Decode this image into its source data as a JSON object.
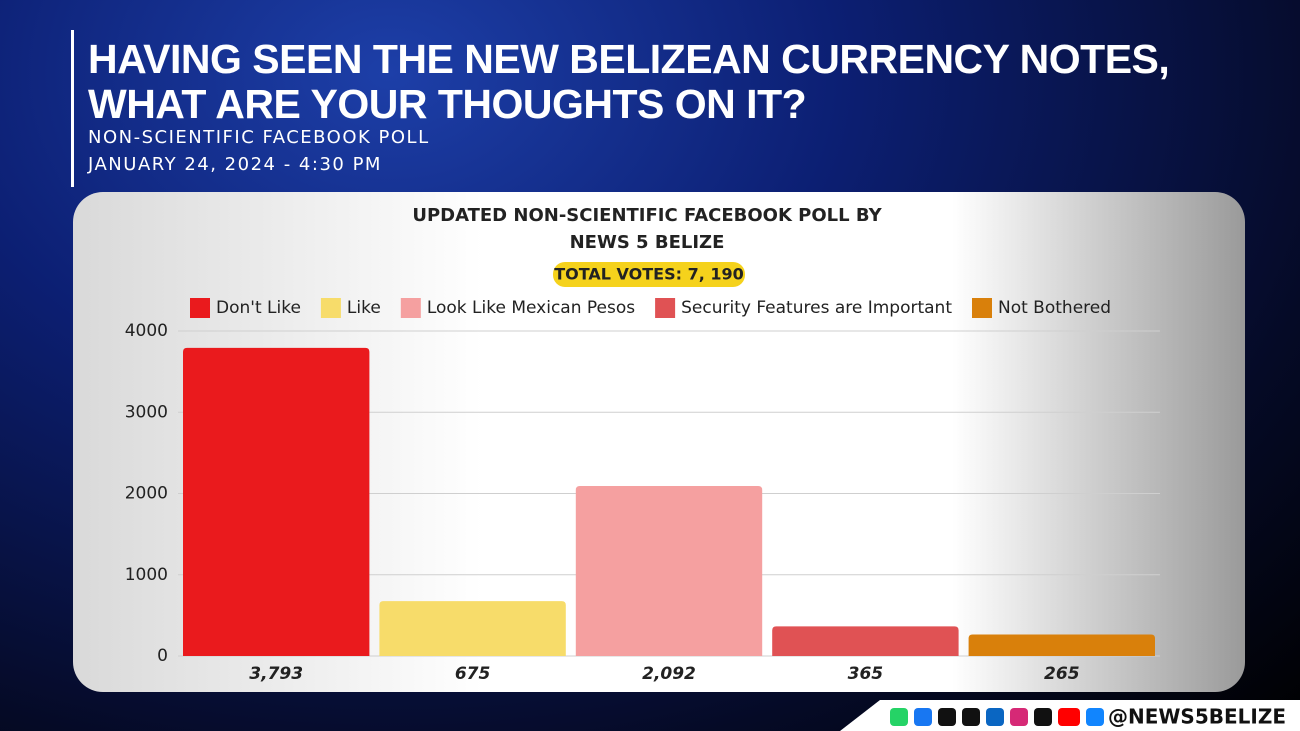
{
  "header": {
    "title": [
      "HAVING SEEN THE NEW BELIZEAN CURRENCY NOTES,",
      "WHAT ARE YOUR THOUGHTS ON IT?"
    ],
    "subtitle": [
      "NON-SCIENTIFIC FACEBOOK POLL",
      "JANUARY 24, 2024 - 4:30 PM"
    ]
  },
  "chart_data": {
    "type": "bar",
    "title": "UPDATED NON-SCIENTIFIC FACEBOOK POLL BY NEWS 5 BELIZE",
    "annotation": "TOTAL VOTES: 7, 190",
    "categories": [
      "Don't Like",
      "Like",
      "Look Like Mexican Pesos",
      "Security Features are Important",
      "Not Bothered"
    ],
    "values": [
      3793,
      675,
      2092,
      365,
      265
    ],
    "value_labels": [
      "3,793",
      "675",
      "2,092",
      "365",
      "265"
    ],
    "colors": [
      "#ea1a1d",
      "#f7dc6a",
      "#f5a0a0",
      "#e05254",
      "#d9800b"
    ],
    "ylim": [
      0,
      4000
    ],
    "yticks": [
      0,
      1000,
      2000,
      3000,
      4000
    ],
    "grid": true
  },
  "footer": {
    "handle": "@NEWS5BELIZE"
  }
}
